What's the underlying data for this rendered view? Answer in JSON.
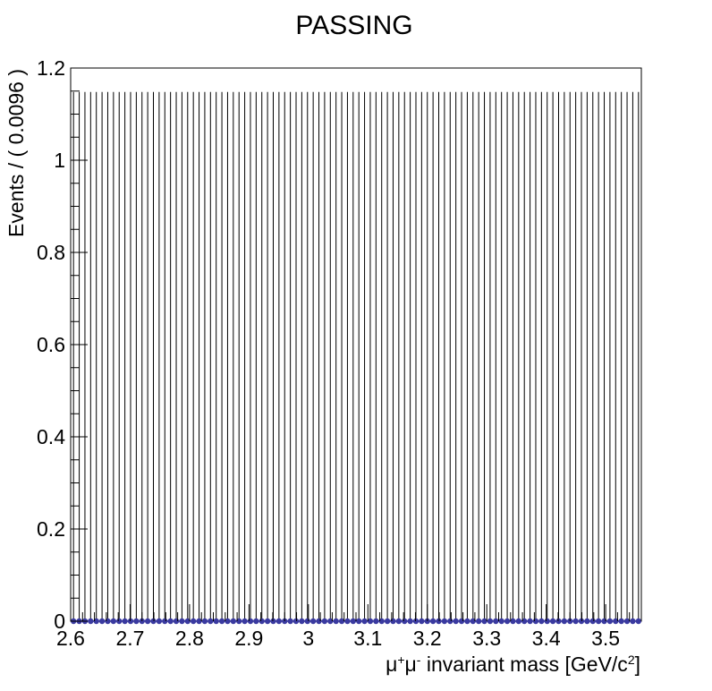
{
  "chart_data": {
    "type": "scatter",
    "title": "PASSING",
    "xlabel_parts": [
      "μ",
      "+",
      "μ",
      "-",
      " invariant mass [GeV/c",
      "2",
      "]"
    ],
    "ylabel": "Events / ( 0.0096 )",
    "xlim": [
      2.6,
      3.56
    ],
    "ylim": [
      0,
      1.2
    ],
    "x_ticks": [
      2.6,
      2.7,
      2.8,
      2.9,
      3.0,
      3.1,
      3.2,
      3.3,
      3.4,
      3.5
    ],
    "x_tick_labels": [
      "2.6",
      "2.7",
      "2.8",
      "2.9",
      "3",
      "3.1",
      "3.2",
      "3.3",
      "3.4",
      "3.5"
    ],
    "y_ticks": [
      0,
      0.2,
      0.4,
      0.6,
      0.8,
      1.0,
      1.2
    ],
    "y_tick_labels": [
      "0",
      "0.2",
      "0.4",
      "0.6",
      "0.8",
      "1",
      "1.2"
    ],
    "bin_width": 0.0096,
    "n_bins": 100,
    "point_value": 0,
    "error_bar_upper": 1.148,
    "marker_color": "#3a3aa0",
    "grid": false,
    "legend": "none"
  }
}
